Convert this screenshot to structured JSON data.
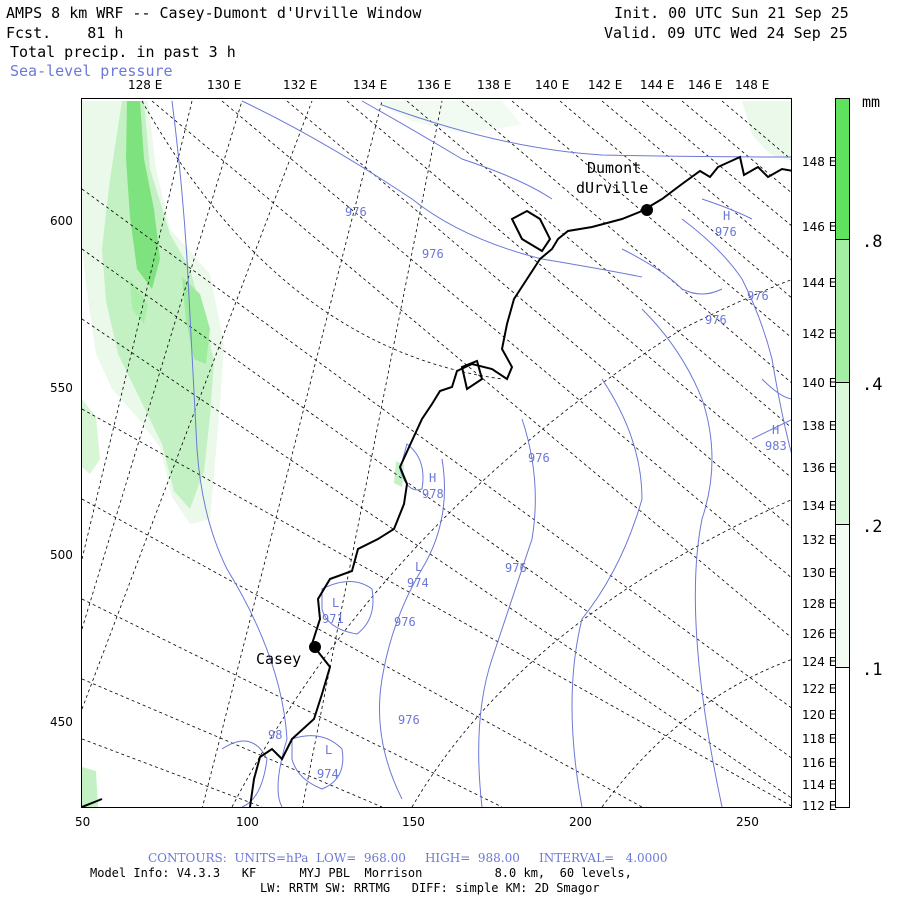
{
  "header": {
    "title": "AMPS 8 km WRF -- Casey-Dumont d'Urville Window",
    "fcst": "Fcst.    81 h",
    "field": "Total precip. in past 3 h",
    "overlay": "Sea-level pressure",
    "init": "Init. 00 UTC Sun 21 Sep 25",
    "valid": "Valid. 09 UTC Wed 24 Sep 25"
  },
  "axes": {
    "top_lon": [
      "128 E",
      "130 E",
      "132 E",
      "134 E",
      "136 E",
      "138 E",
      "140 E",
      "142 E",
      "144 E",
      "146 E",
      "148 E"
    ],
    "right_lon": [
      "148 E",
      "146 E",
      "144 E",
      "142 E",
      "140 E",
      "138 E",
      "136 E",
      "134 E",
      "132 E",
      "130 E",
      "128 E",
      "126 E",
      "124 E",
      "122 E",
      "120 E",
      "118 E",
      "116 E",
      "114 E",
      "112 E"
    ],
    "left_y": [
      "600",
      "550",
      "500",
      "450"
    ],
    "bottom_x": [
      "50",
      "100",
      "150",
      "200",
      "250"
    ]
  },
  "map": {
    "stations": [
      {
        "name": "Dumont",
        "name2": "dUrville"
      },
      {
        "name": "Casey"
      }
    ],
    "pressure_labels": [
      {
        "text": "976"
      },
      {
        "text": "976"
      },
      {
        "text": "H"
      },
      {
        "text": "976"
      },
      {
        "text": "976"
      },
      {
        "text": "976"
      },
      {
        "text": "H"
      },
      {
        "text": "983"
      },
      {
        "text": "976"
      },
      {
        "text": "H"
      },
      {
        "text": "978"
      },
      {
        "text": "L"
      },
      {
        "text": "974"
      },
      {
        "text": "976"
      },
      {
        "text": "L"
      },
      {
        "text": "971"
      },
      {
        "text": "976"
      },
      {
        "text": "976"
      },
      {
        "text": "98"
      },
      {
        "text": "L"
      },
      {
        "text": "974"
      }
    ],
    "colors": {
      "coast": "#000000",
      "isobar": "#6b78d8",
      "grid": "#000000",
      "precip_light": "#dff7df",
      "precip_mid": "#a9efa9",
      "precip_high": "#7ee27e"
    }
  },
  "legend": {
    "unit": "mm",
    "labels": [
      ".8",
      ".4",
      ".2",
      ".1"
    ],
    "levels": [
      0.1,
      0.2,
      0.4,
      0.8
    ],
    "colors": [
      "#ffffff",
      "#ecfaec",
      "#cdf5cd",
      "#a3eea3",
      "#5fe35f"
    ]
  },
  "footer": {
    "contours": "CONTOURS:  UNITS=hPa  LOW=  968.00     HIGH=  988.00     INTERVAL=   4.0000",
    "model": "Model Info: V4.3.3   KF      MYJ PBL  Morrison          8.0 km,  60 levels,",
    "physics": "LW: RRTM SW: RRTMG   DIFF: simple KM: 2D Smagor"
  }
}
